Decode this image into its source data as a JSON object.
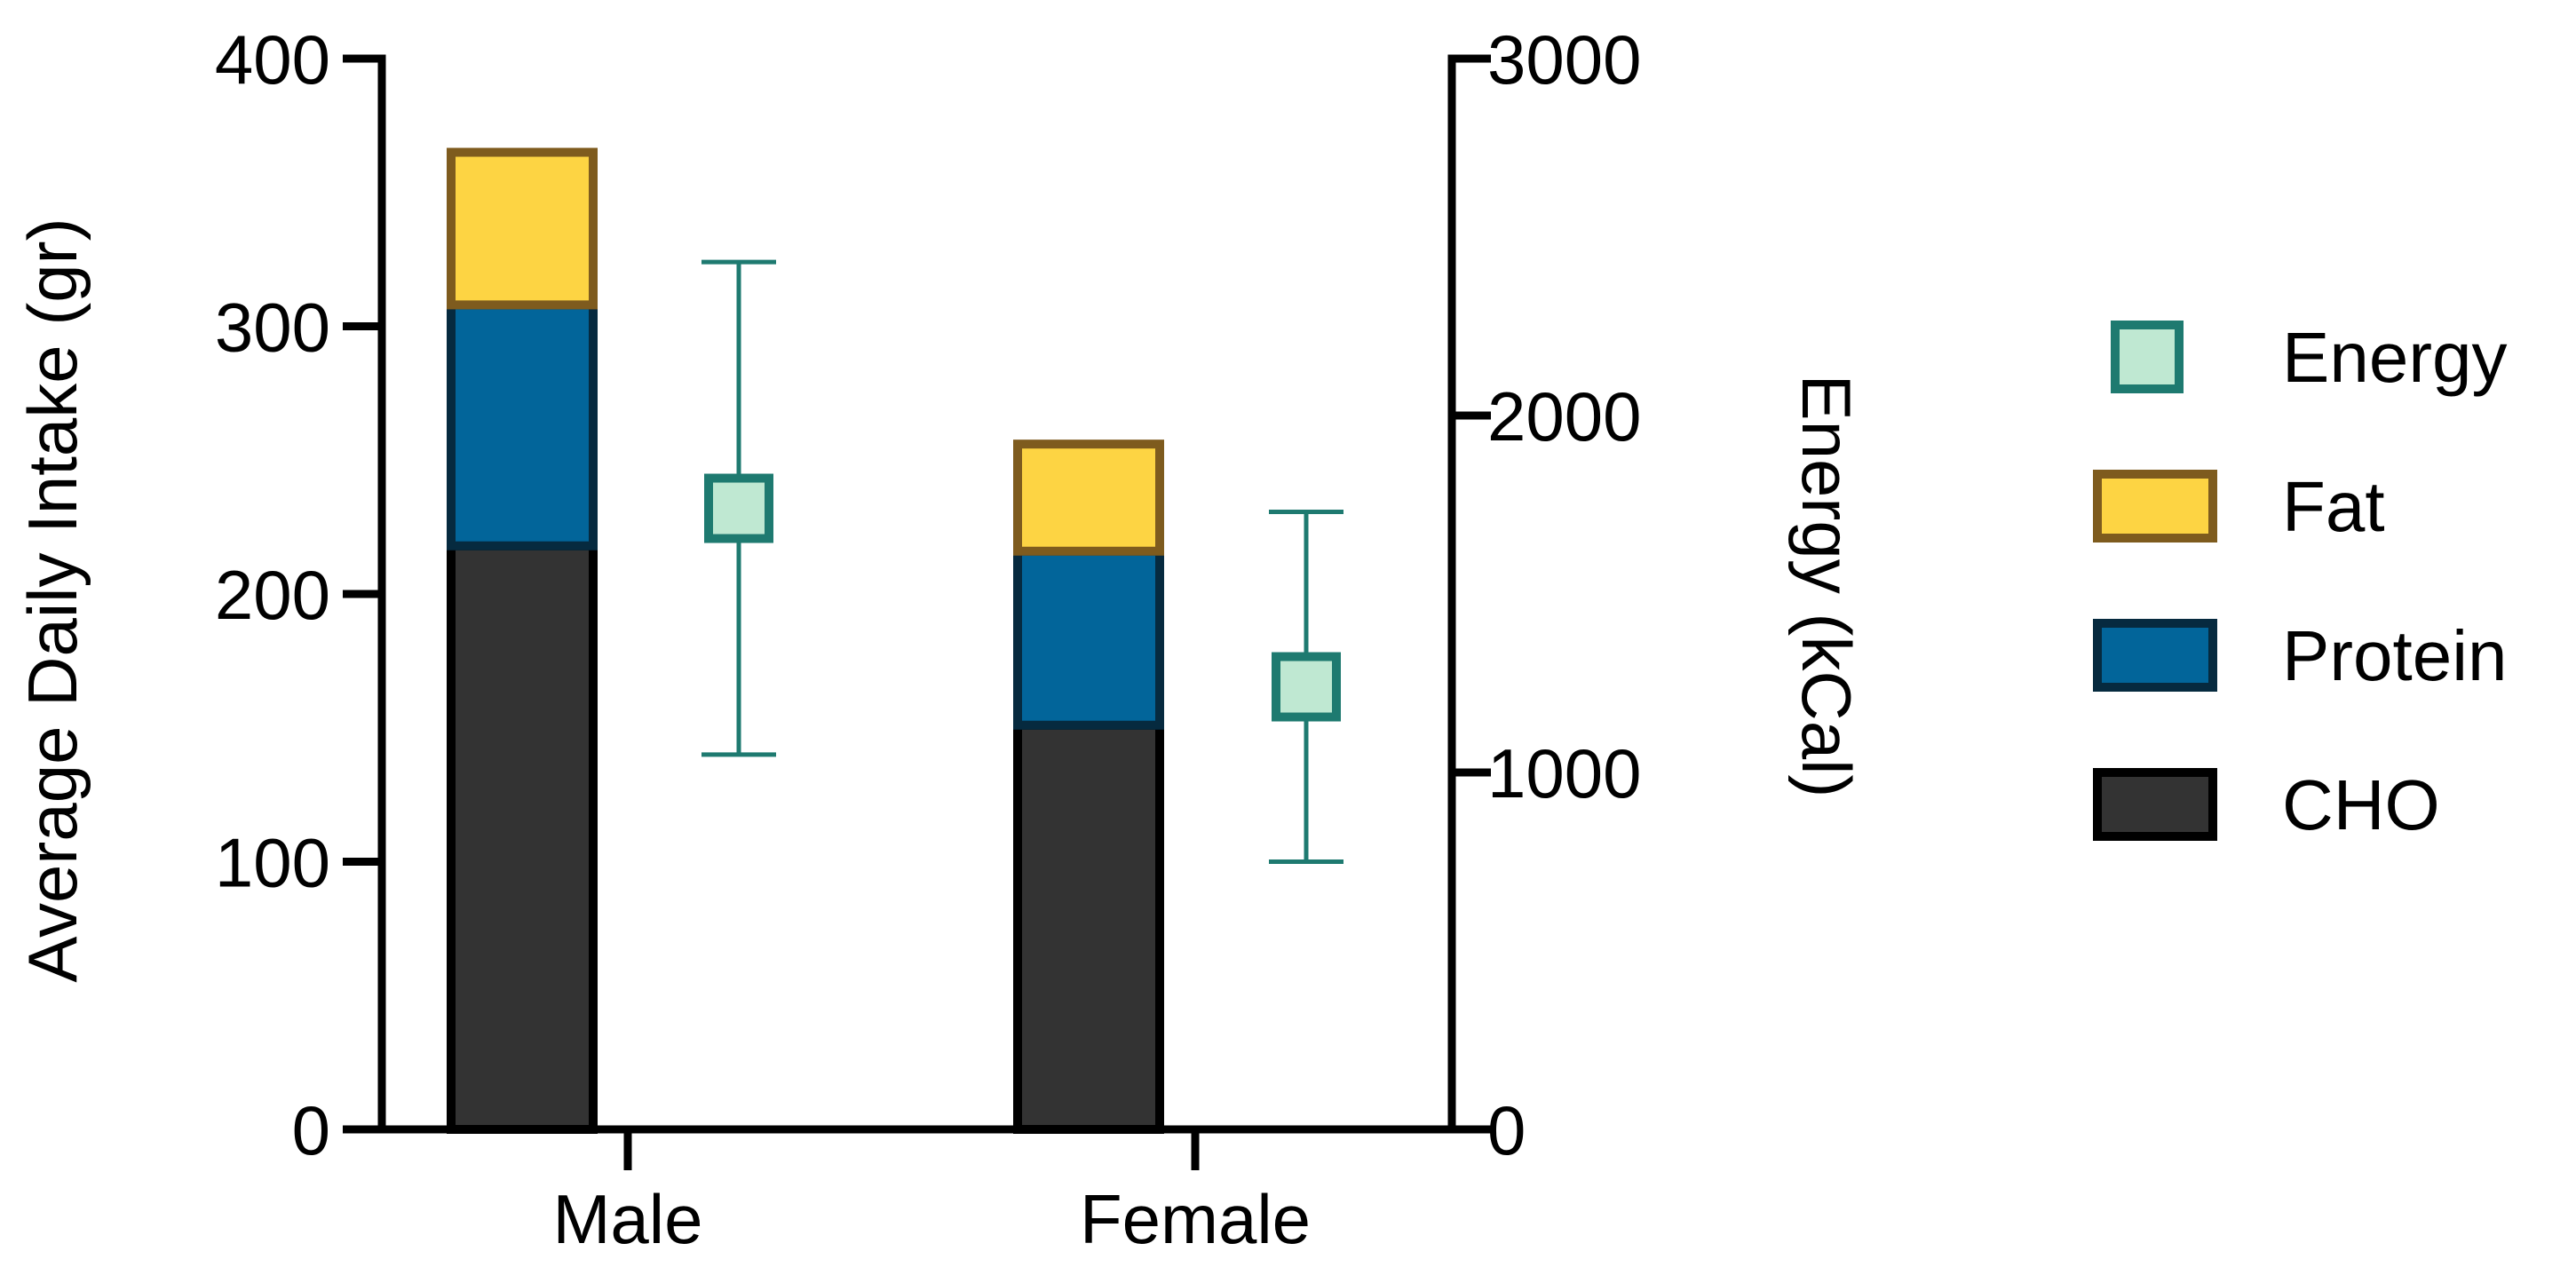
{
  "chart_data": {
    "type": "bar",
    "stacked": true,
    "dual_axis": true,
    "categories": [
      "Male",
      "Female"
    ],
    "series": [
      {
        "name": "CHO",
        "axis": "left",
        "values": [
          218,
          151
        ],
        "color": "#333333",
        "edge": "#000000"
      },
      {
        "name": "Protein",
        "axis": "left",
        "values": [
          90,
          65
        ],
        "color": "#02659A",
        "edge": "#062A3F"
      },
      {
        "name": "Fat",
        "axis": "left",
        "values": [
          57,
          40
        ],
        "color": "#FDD443",
        "edge": "#7E5B1E"
      }
    ],
    "energy": {
      "name": "Energy",
      "axis": "right",
      "means": [
        1740,
        1240
      ],
      "error_low": [
        1050,
        750
      ],
      "error_high": [
        2430,
        1730
      ],
      "color": "#BFE8D2",
      "edge": "#1E7A70"
    },
    "left_axis": {
      "label": "Average Daily Intake (gr)",
      "ylim": [
        0,
        400
      ],
      "ticks": [
        "0",
        "100",
        "200",
        "300",
        "400"
      ]
    },
    "right_axis": {
      "label": "Energy (kCal)",
      "ylim": [
        0,
        3000
      ],
      "ticks": [
        "0",
        "1000",
        "2000",
        "3000"
      ]
    },
    "legend": {
      "placement": "right",
      "entries": [
        "Energy",
        "Fat",
        "Protein",
        "CHO"
      ]
    }
  }
}
